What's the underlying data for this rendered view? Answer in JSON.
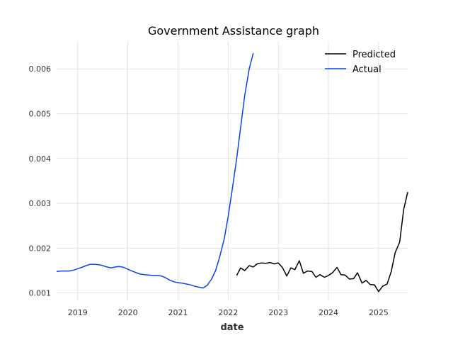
{
  "chart_data": {
    "type": "line",
    "title": "Government Assistance graph",
    "xlabel": "date",
    "ylabel": "",
    "xlim": [
      2018.58,
      2025.58
    ],
    "ylim": [
      0.00082,
      0.00662
    ],
    "grid": true,
    "legend_position": "top-right",
    "x_ticks": [
      2019,
      2020,
      2021,
      2022,
      2023,
      2024,
      2025
    ],
    "x_tick_labels": [
      "2019",
      "2020",
      "2021",
      "2022",
      "2023",
      "2024",
      "2025"
    ],
    "y_ticks": [
      0.001,
      0.002,
      0.003,
      0.004,
      0.005,
      0.006
    ],
    "y_tick_labels": [
      "0.001",
      "0.002",
      "0.003",
      "0.004",
      "0.005",
      "0.006"
    ],
    "series": [
      {
        "name": "Predicted",
        "color": "#000000",
        "x": [
          2022.17,
          2022.25,
          2022.33,
          2022.42,
          2022.5,
          2022.58,
          2022.67,
          2022.75,
          2022.83,
          2022.92,
          2023.0,
          2023.08,
          2023.17,
          2023.25,
          2023.33,
          2023.42,
          2023.5,
          2023.58,
          2023.67,
          2023.75,
          2023.83,
          2023.92,
          2024.0,
          2024.08,
          2024.17,
          2024.25,
          2024.33,
          2024.42,
          2024.5,
          2024.58,
          2024.67,
          2024.75,
          2024.83,
          2024.92,
          2025.0,
          2025.08,
          2025.17,
          2025.25,
          2025.33,
          2025.42,
          2025.5,
          2025.58
        ],
        "values": [
          0.00139,
          0.00156,
          0.0015,
          0.00161,
          0.00158,
          0.00165,
          0.00167,
          0.00166,
          0.00168,
          0.00165,
          0.00167,
          0.00157,
          0.00138,
          0.00156,
          0.00152,
          0.00172,
          0.00144,
          0.00149,
          0.00148,
          0.00135,
          0.00141,
          0.00135,
          0.00139,
          0.00145,
          0.00157,
          0.00141,
          0.0014,
          0.00131,
          0.00132,
          0.00145,
          0.00122,
          0.00128,
          0.00119,
          0.00118,
          0.00103,
          0.00115,
          0.0012,
          0.00147,
          0.0019,
          0.00214,
          0.00286,
          0.00325
        ]
      },
      {
        "name": "Actual",
        "color": "#0a43e8",
        "x": [
          2018.58,
          2018.67,
          2018.75,
          2018.83,
          2018.92,
          2019.0,
          2019.08,
          2019.17,
          2019.25,
          2019.33,
          2019.42,
          2019.5,
          2019.58,
          2019.67,
          2019.75,
          2019.83,
          2019.92,
          2020.0,
          2020.08,
          2020.17,
          2020.25,
          2020.33,
          2020.42,
          2020.5,
          2020.58,
          2020.67,
          2020.75,
          2020.83,
          2020.92,
          2021.0,
          2021.08,
          2021.17,
          2021.25,
          2021.33,
          2021.42,
          2021.5,
          2021.58,
          2021.67,
          2021.75,
          2021.83,
          2021.92,
          2022.0,
          2022.08,
          2022.17,
          2022.25,
          2022.33,
          2022.42,
          2022.5
        ],
        "values": [
          0.00148,
          0.00149,
          0.00149,
          0.00149,
          0.00151,
          0.00154,
          0.00157,
          0.00161,
          0.00164,
          0.00164,
          0.00163,
          0.00161,
          0.00158,
          0.00156,
          0.00158,
          0.00159,
          0.00157,
          0.00153,
          0.00149,
          0.00145,
          0.00142,
          0.00141,
          0.0014,
          0.00139,
          0.00139,
          0.00138,
          0.00134,
          0.00129,
          0.00125,
          0.00123,
          0.00122,
          0.0012,
          0.00118,
          0.00115,
          0.00113,
          0.00111,
          0.00117,
          0.00131,
          0.0015,
          0.0018,
          0.0022,
          0.0027,
          0.0033,
          0.004,
          0.0047,
          0.0054,
          0.006,
          0.00635
        ]
      }
    ]
  }
}
